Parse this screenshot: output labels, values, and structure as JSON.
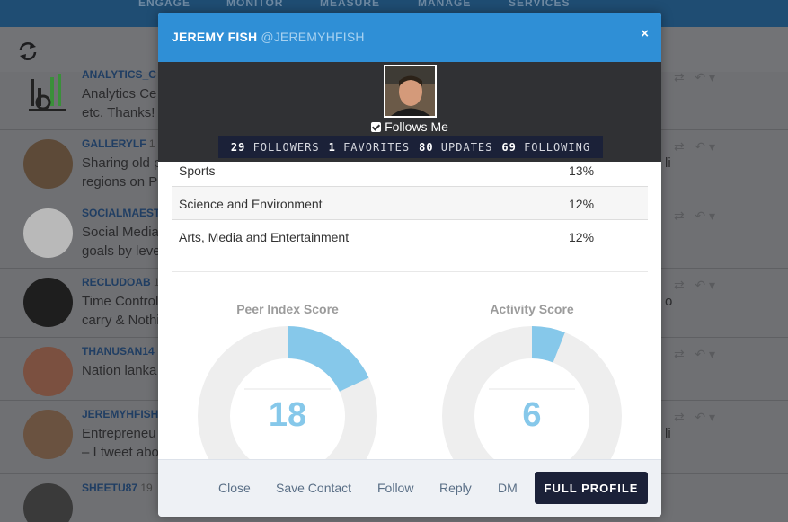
{
  "nav": {
    "items": [
      "ENGAGE",
      "MONITOR",
      "MEASURE",
      "MANAGE",
      "SERVICES"
    ]
  },
  "stream": {
    "rows": [
      {
        "handle": "ANALYTICS_C",
        "snippet": "Analytics Ce",
        "snippet2": "etc. Thanks!",
        "tail": ""
      },
      {
        "handle": "GALLERYLF",
        "meta": "1",
        "snippet": "Sharing old p",
        "snippet2": "regions on P",
        "tail": "li"
      },
      {
        "handle": "SOCIALMAEST",
        "snippet": "Social Media",
        "snippet2": "goals by leve",
        "tail": ""
      },
      {
        "handle": "RECLUDOAB",
        "meta": "1",
        "snippet": "Time Control",
        "snippet2": "carry & Nothi",
        "tail": "o"
      },
      {
        "handle": "THANUSAN14",
        "snippet": "Nation lanka",
        "snippet2": "",
        "tail": ""
      },
      {
        "handle": "JEREMYHFISH",
        "snippet": "Entrepreneu",
        "snippet2": "– I tweet abo",
        "tail": "li"
      },
      {
        "handle": "SHEETU87",
        "meta": "19",
        "snippet": "",
        "snippet2": "",
        "tail": ""
      }
    ]
  },
  "modal": {
    "name": "JEREMY FISH",
    "handle": "@JEREMYHFISH",
    "close_glyph": "×",
    "follows_me": "Follows Me",
    "stats": [
      {
        "num": "29",
        "label": "FOLLOWERS"
      },
      {
        "num": "1",
        "label": "FAVORITES"
      },
      {
        "num": "80",
        "label": "UPDATES"
      },
      {
        "num": "69",
        "label": "FOLLOWING"
      }
    ],
    "topics": [
      {
        "name": "Sports",
        "pct": "13%"
      },
      {
        "name": "Science and Environment",
        "pct": "12%"
      },
      {
        "name": "Arts, Media and Entertainment",
        "pct": "12%"
      }
    ],
    "peer_index": {
      "label": "Peer Index Score",
      "value": "18",
      "fraction": 0.18
    },
    "activity": {
      "label": "Activity Score",
      "value": "6",
      "fraction": 0.06
    },
    "footer": {
      "close": "Close",
      "save_contact": "Save Contact",
      "follow": "Follow",
      "reply": "Reply",
      "dm": "DM",
      "full_profile": "FULL PROFILE"
    }
  },
  "colors": {
    "accent": "#2f8fd6",
    "dark": "#1b2138",
    "donut_fill": "#86c8ea",
    "donut_track": "#eeeeee"
  },
  "icons": [
    "refresh-icon",
    "analytics-icon",
    "close-icon",
    "check-icon",
    "retweet-icon",
    "reply-icon"
  ]
}
